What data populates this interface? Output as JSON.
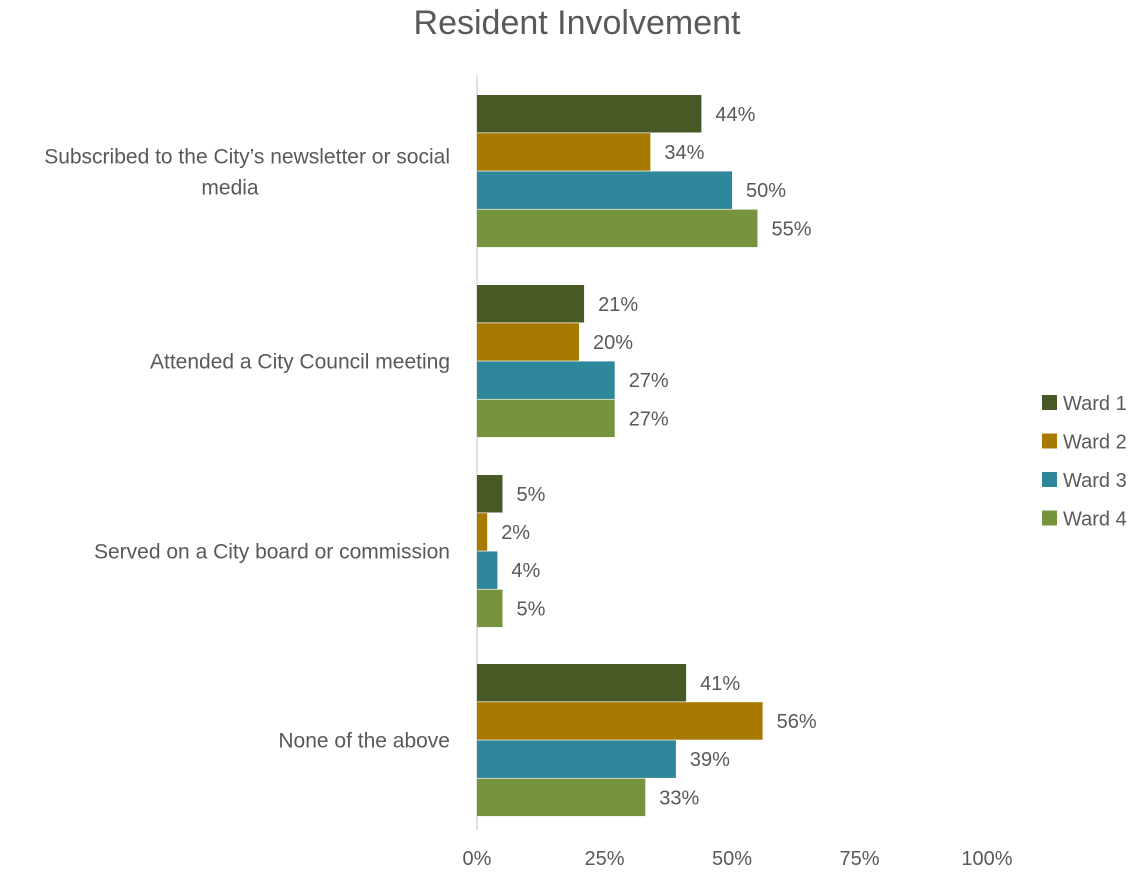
{
  "chart_data": {
    "type": "bar",
    "orientation": "horizontal",
    "title": "Resident Involvement",
    "categories": [
      "Subscribed to the City’s newsletter or social media",
      "Attended a City Council meeting",
      "Served on a City board or commission",
      "None of the above"
    ],
    "series": [
      {
        "name": "Ward 1",
        "color": "#475a25",
        "values": [
          44,
          21,
          5,
          41
        ]
      },
      {
        "name": "Ward 2",
        "color": "#a87b00",
        "values": [
          34,
          20,
          2,
          56
        ]
      },
      {
        "name": "Ward 3",
        "color": "#2e879b",
        "values": [
          50,
          27,
          4,
          39
        ]
      },
      {
        "name": "Ward 4",
        "color": "#76943e",
        "values": [
          55,
          27,
          5,
          33
        ]
      }
    ],
    "xlim": [
      0,
      100
    ],
    "xticks": [
      "0%",
      "25%",
      "50%",
      "75%",
      "100%"
    ],
    "value_suffix": "%",
    "grid": false,
    "legend_position": "right"
  }
}
